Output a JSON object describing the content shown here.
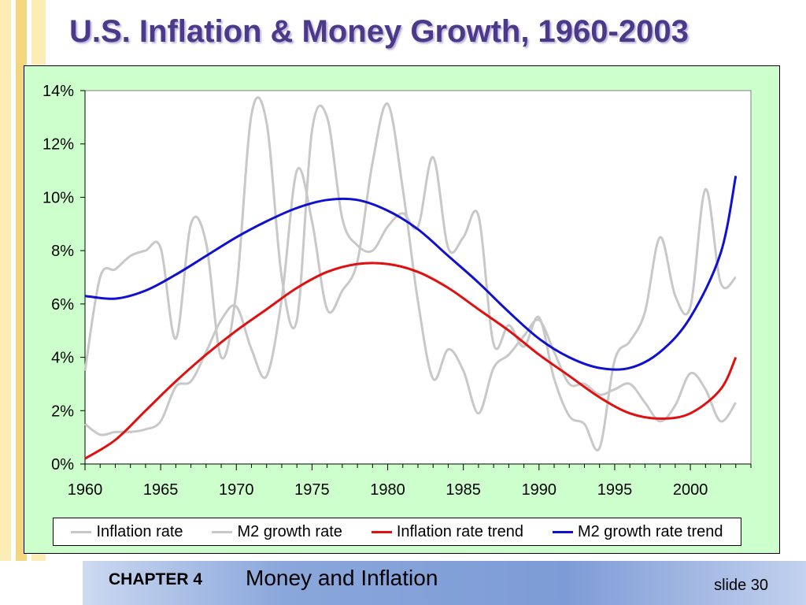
{
  "slide": {
    "title": "U.S. Inflation & Money Growth, 1960-2003",
    "chapter_label": "CHAPTER 4",
    "chapter_title": "Money and Inflation",
    "slide_number": "slide 30"
  },
  "colors": {
    "title": "#4b3a8a",
    "chart_background": "#ccffcc",
    "plot_background": "#ffffff",
    "stripe_light": "#fbe9a8",
    "stripe_dark": "#f3cf6a",
    "inflation_rate": "#c8c8c8",
    "m2_growth_rate": "#c8c8c8",
    "inflation_trend": "#e01010",
    "m2_trend": "#1010d0"
  },
  "chart_data": {
    "type": "line",
    "title": "",
    "xlabel": "",
    "ylabel": "",
    "xlim": [
      1960,
      2004
    ],
    "ylim": [
      0,
      0.14
    ],
    "x_ticks": [
      "1960",
      "1965",
      "1970",
      "1975",
      "1980",
      "1985",
      "1990",
      "1995",
      "2000"
    ],
    "y_ticks": [
      "0%",
      "2%",
      "4%",
      "6%",
      "8%",
      "10%",
      "12%",
      "14%"
    ],
    "grid": false,
    "legend_placement": "bottom",
    "series": [
      {
        "name": "Inflation rate",
        "color": "#c8c8c8",
        "x": [
          1960,
          1961,
          1962,
          1963,
          1964,
          1965,
          1966,
          1967,
          1968,
          1969,
          1970,
          1971,
          1972,
          1973,
          1974,
          1975,
          1976,
          1977,
          1978,
          1979,
          1980,
          1981,
          1982,
          1983,
          1984,
          1985,
          1986,
          1987,
          1988,
          1989,
          1990,
          1991,
          1992,
          1993,
          1994,
          1995,
          1996,
          1997,
          1998,
          1999,
          2000,
          2001,
          2002,
          2003
        ],
        "values": [
          0.015,
          0.011,
          0.012,
          0.012,
          0.013,
          0.016,
          0.029,
          0.031,
          0.042,
          0.054,
          0.059,
          0.043,
          0.033,
          0.062,
          0.11,
          0.091,
          0.058,
          0.065,
          0.076,
          0.113,
          0.135,
          0.103,
          0.061,
          0.032,
          0.043,
          0.035,
          0.019,
          0.036,
          0.041,
          0.048,
          0.054,
          0.042,
          0.03,
          0.03,
          0.026,
          0.028,
          0.03,
          0.023,
          0.016,
          0.022,
          0.034,
          0.028,
          0.016,
          0.023
        ]
      },
      {
        "name": "M2 growth rate",
        "color": "#c8c8c8",
        "x": [
          1960,
          1961,
          1962,
          1963,
          1964,
          1965,
          1966,
          1967,
          1968,
          1969,
          1970,
          1971,
          1972,
          1973,
          1974,
          1975,
          1976,
          1977,
          1978,
          1979,
          1980,
          1981,
          1982,
          1983,
          1984,
          1985,
          1986,
          1987,
          1988,
          1989,
          1990,
          1991,
          1992,
          1993,
          1994,
          1995,
          1996,
          1997,
          1998,
          1999,
          2000,
          2001,
          2002,
          2003
        ],
        "values": [
          0.035,
          0.07,
          0.073,
          0.078,
          0.08,
          0.081,
          0.047,
          0.09,
          0.083,
          0.04,
          0.065,
          0.131,
          0.128,
          0.07,
          0.054,
          0.125,
          0.13,
          0.092,
          0.082,
          0.08,
          0.089,
          0.094,
          0.089,
          0.115,
          0.081,
          0.085,
          0.093,
          0.045,
          0.052,
          0.044,
          0.055,
          0.032,
          0.018,
          0.015,
          0.006,
          0.039,
          0.046,
          0.057,
          0.085,
          0.063,
          0.059,
          0.103,
          0.068,
          0.07
        ]
      },
      {
        "name": "Inflation rate trend",
        "color": "#e01010",
        "x": [
          1960,
          1962,
          1964,
          1966,
          1968,
          1970,
          1972,
          1974,
          1976,
          1978,
          1980,
          1982,
          1984,
          1986,
          1988,
          1990,
          1992,
          1994,
          1996,
          1998,
          2000,
          2002,
          2003
        ],
        "values": [
          0.002,
          0.009,
          0.02,
          0.031,
          0.041,
          0.05,
          0.058,
          0.066,
          0.072,
          0.075,
          0.075,
          0.072,
          0.066,
          0.058,
          0.05,
          0.041,
          0.033,
          0.025,
          0.019,
          0.017,
          0.019,
          0.028,
          0.04
        ]
      },
      {
        "name": "M2 growth rate trend",
        "color": "#1010d0",
        "x": [
          1960,
          1962,
          1964,
          1966,
          1968,
          1970,
          1972,
          1974,
          1976,
          1978,
          1980,
          1982,
          1984,
          1986,
          1988,
          1990,
          1992,
          1994,
          1996,
          1998,
          2000,
          2002,
          2003
        ],
        "values": [
          0.063,
          0.062,
          0.065,
          0.071,
          0.078,
          0.085,
          0.091,
          0.096,
          0.099,
          0.099,
          0.095,
          0.088,
          0.078,
          0.068,
          0.057,
          0.047,
          0.04,
          0.036,
          0.036,
          0.042,
          0.055,
          0.079,
          0.108
        ]
      }
    ]
  }
}
